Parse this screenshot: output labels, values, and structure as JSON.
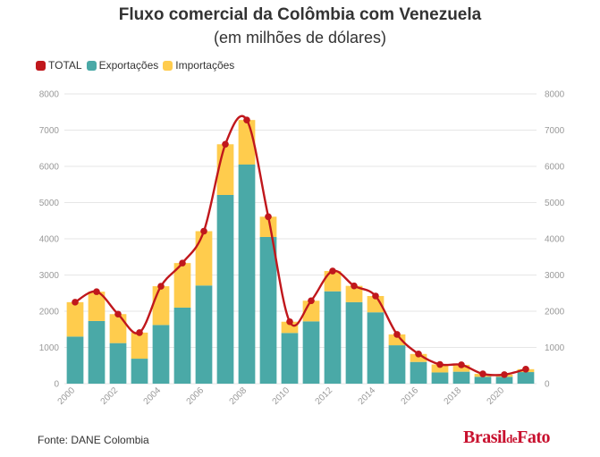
{
  "header": {
    "title": "Fluxo comercial da Colômbia com Venezuela",
    "subtitle": "(em milhões de dólares)"
  },
  "legend": [
    {
      "label": "TOTAL",
      "color": "#c0171c"
    },
    {
      "label": "Exportações",
      "color": "#4aa9a7"
    },
    {
      "label": "Importações",
      "color": "#ffcc4d"
    }
  ],
  "footer": {
    "source": "Fonte: DANE Colombia",
    "brand_main": "Brasil",
    "brand_small": "de",
    "brand_end": "Fato"
  },
  "chart_data": {
    "type": "bar",
    "stacked": true,
    "categories": [
      "2000",
      "2001",
      "2002",
      "2003",
      "2004",
      "2005",
      "2006",
      "2007",
      "2008",
      "2009",
      "2010",
      "2011",
      "2012",
      "2013",
      "2014",
      "2015",
      "2016",
      "2017",
      "2018",
      "2019",
      "2020",
      "2021"
    ],
    "tick_labels": [
      "2000",
      "2002",
      "2004",
      "2006",
      "2008",
      "2010",
      "2012",
      "2014",
      "2016",
      "2018",
      "2020"
    ],
    "series": [
      {
        "name": "Exportações",
        "color": "#4aa9a7",
        "values": [
          1300,
          1730,
          1120,
          690,
          1620,
          2100,
          2710,
          5210,
          6050,
          4050,
          1400,
          1720,
          2550,
          2250,
          1970,
          1060,
          600,
          310,
          330,
          190,
          190,
          320
        ]
      },
      {
        "name": "Importações",
        "color": "#ffcc4d",
        "values": [
          950,
          810,
          800,
          720,
          1070,
          1230,
          1500,
          1400,
          1230,
          560,
          310,
          570,
          560,
          450,
          450,
          300,
          220,
          220,
          190,
          80,
          60,
          80
        ]
      },
      {
        "name": "TOTAL",
        "type": "line",
        "color": "#c0171c",
        "values": [
          2250,
          2540,
          1920,
          1410,
          2690,
          3330,
          4210,
          6610,
          7280,
          4610,
          1710,
          2290,
          3110,
          2700,
          2420,
          1360,
          820,
          530,
          520,
          270,
          250,
          400
        ]
      }
    ],
    "ylim": [
      0,
      8000
    ],
    "yticks": [
      0,
      1000,
      2000,
      3000,
      4000,
      5000,
      6000,
      7000,
      8000
    ],
    "grid": true,
    "legend_position": "top-left"
  }
}
